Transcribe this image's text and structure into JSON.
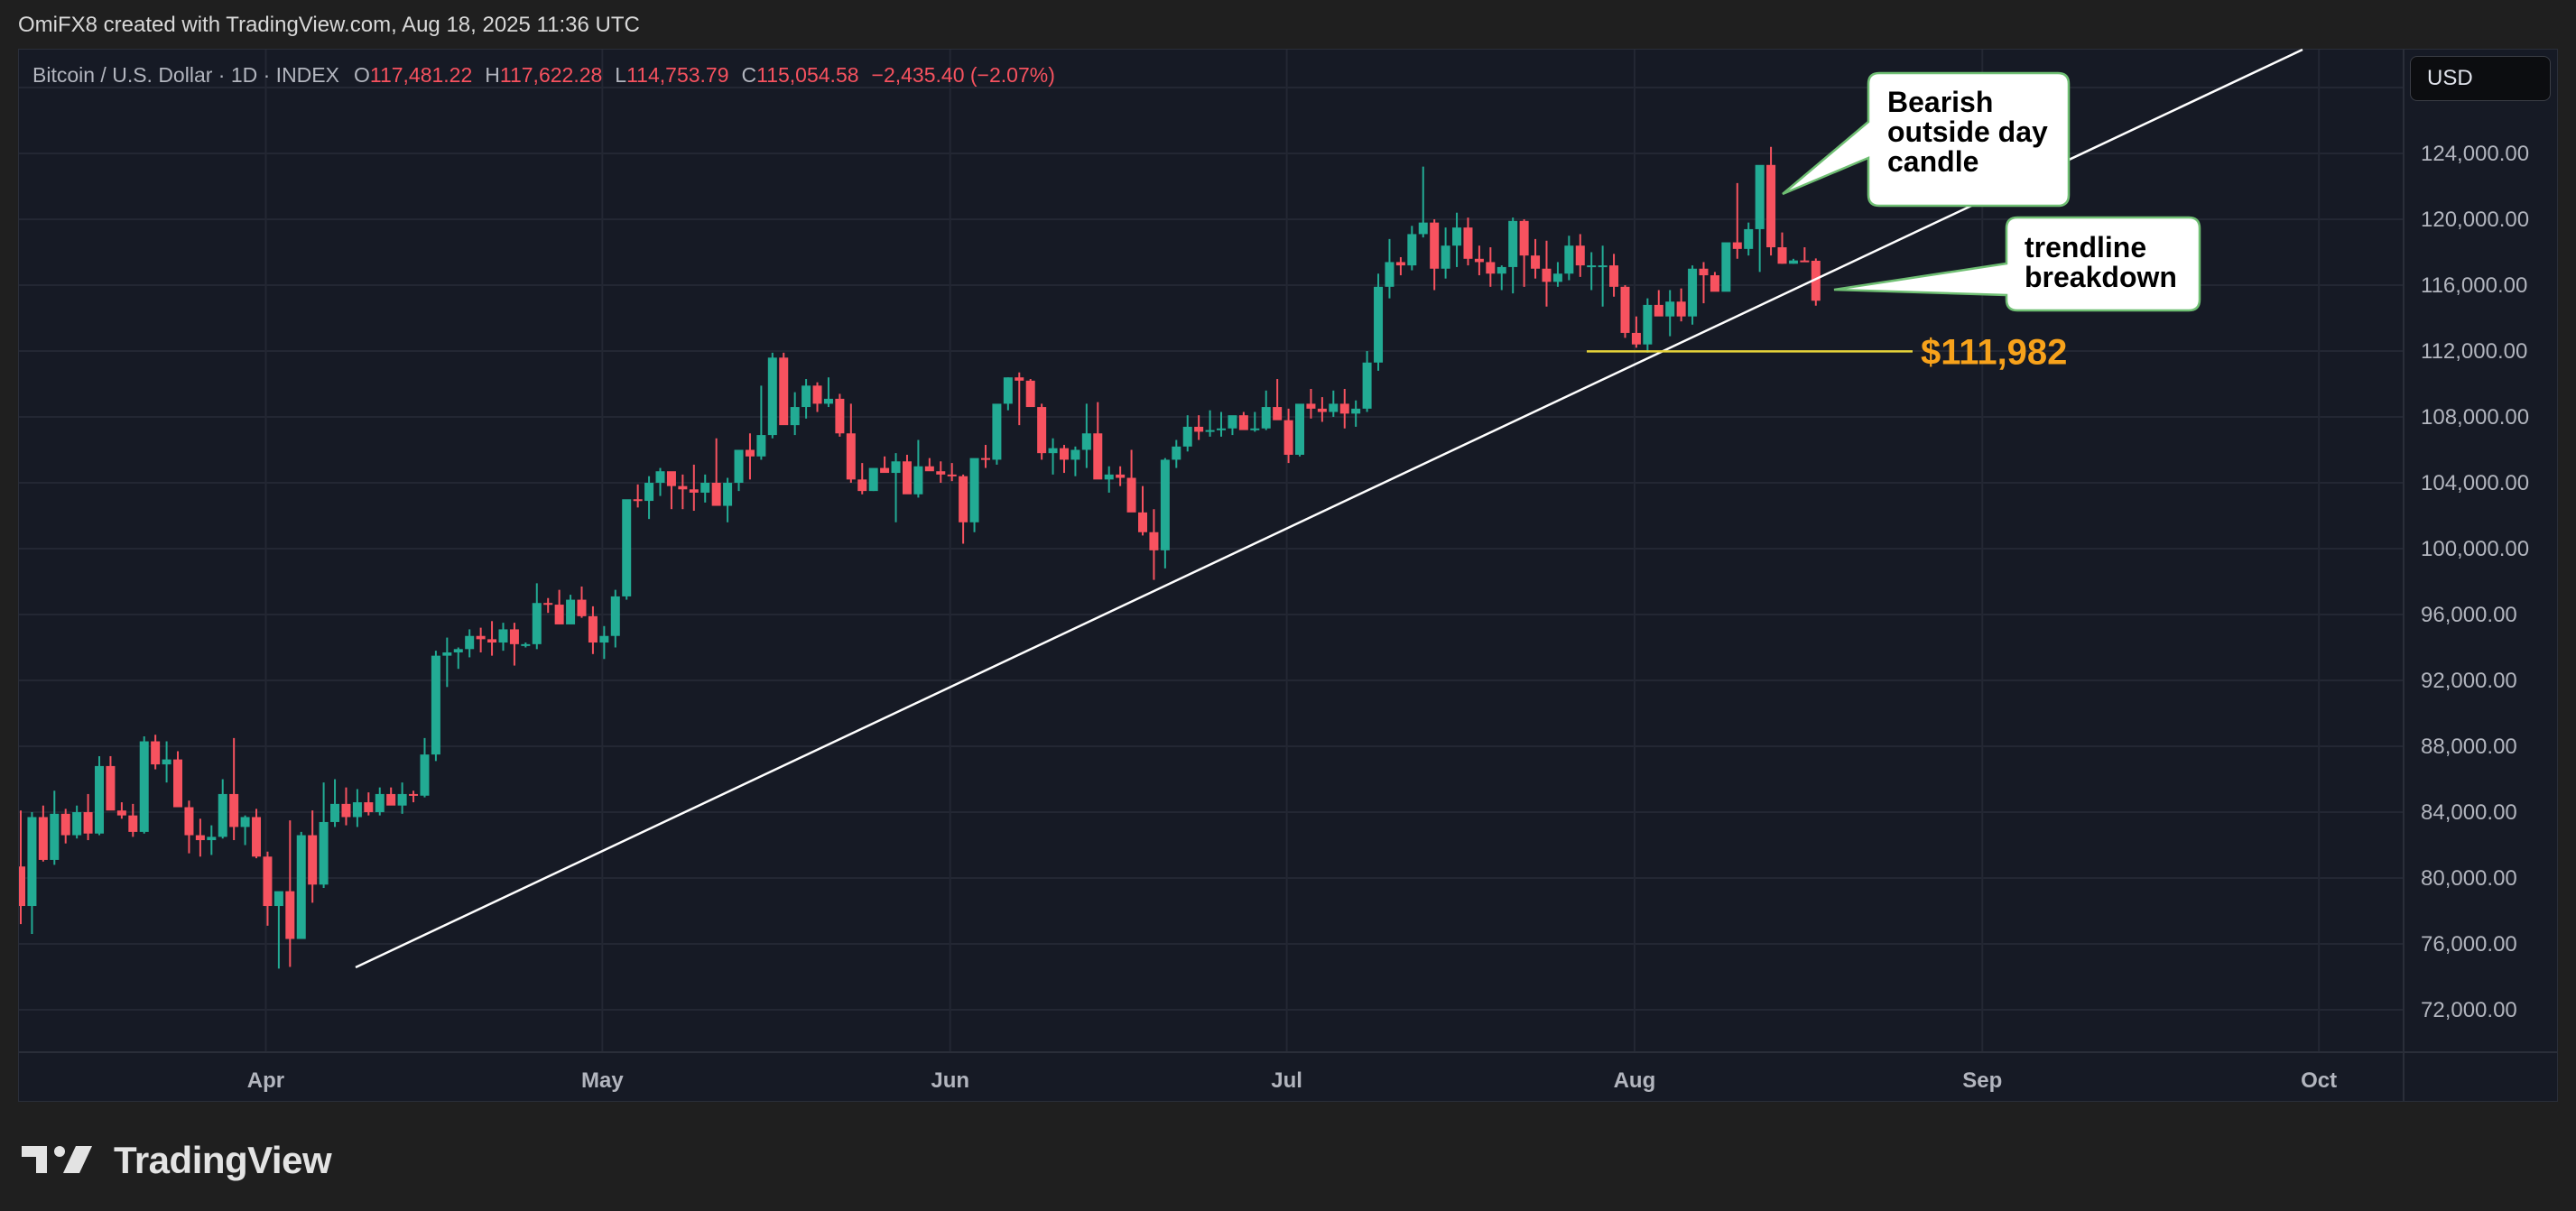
{
  "credit": "OmiFX8 created with TradingView.com, Aug 18, 2025 11:36 UTC",
  "legend": {
    "symbol": "Bitcoin / U.S. Dollar · 1D · INDEX",
    "o_label": "O",
    "o": "117,481.22",
    "h_label": "H",
    "h": "117,622.28",
    "l_label": "L",
    "l": "114,753.79",
    "c_label": "C",
    "c": "115,054.58",
    "change": "−2,435.40 (−2.07%)"
  },
  "currency_button": "USD",
  "annotations": {
    "bearish_callout": [
      "Bearish",
      "outside day",
      "candle"
    ],
    "trendline_callout": [
      "trendline",
      "breakdown"
    ],
    "support_label": "$111,982",
    "support_level": 111982
  },
  "footer": {
    "logo_text": "TradingView"
  },
  "colors": {
    "up": "#22ab94",
    "down": "#f7525f",
    "background": "#161a25",
    "grid": "#232733",
    "trendline": "#ffffff",
    "support_line": "#e6d33a",
    "support_label": "#f7a21b",
    "callout_border": "#6fbf73"
  },
  "chart_data": {
    "type": "candlestick",
    "title": "Bitcoin / U.S. Dollar · 1D · INDEX",
    "xlabel": "",
    "ylabel": "USD",
    "ylim": [
      69000,
      129500
    ],
    "y_ticks": [
      124000,
      120000,
      116000,
      112000,
      108000,
      104000,
      100000,
      96000,
      92000,
      88000,
      84000,
      80000,
      76000,
      72000
    ],
    "y_tick_labels": [
      "124,000.00",
      "120,000.00",
      "116,000.00",
      "112,000.00",
      "108,000.00",
      "104,000.00",
      "100,000.00",
      "96,000.00",
      "92,000.00",
      "88,000.00",
      "84,000.00",
      "80,000.00",
      "76,000.00",
      "72,000.00"
    ],
    "x_ticks": [
      {
        "label": "Apr",
        "day_index": 22
      },
      {
        "label": "May",
        "day_index": 52
      },
      {
        "label": "Jun",
        "day_index": 83
      },
      {
        "label": "Jul",
        "day_index": 113
      },
      {
        "label": "Aug",
        "day_index": 144
      },
      {
        "label": "Sep",
        "day_index": 175
      },
      {
        "label": "Oct",
        "day_index": 205
      }
    ],
    "start_date": "2025-03-10",
    "ohlc": [
      [
        80700,
        84100,
        77200,
        78300
      ],
      [
        78300,
        84000,
        76600,
        83700
      ],
      [
        83700,
        84400,
        81000,
        81100
      ],
      [
        81100,
        85300,
        80800,
        83900
      ],
      [
        83900,
        84200,
        82100,
        82600
      ],
      [
        82600,
        84400,
        82400,
        84000
      ],
      [
        84000,
        85100,
        82300,
        82700
      ],
      [
        82700,
        87400,
        82600,
        86800
      ],
      [
        86800,
        87400,
        85000,
        84100
      ],
      [
        84100,
        84600,
        83600,
        83800
      ],
      [
        83800,
        84500,
        82500,
        82800
      ],
      [
        82800,
        88600,
        82700,
        88300
      ],
      [
        88300,
        88700,
        86600,
        86900
      ],
      [
        86900,
        88300,
        85800,
        87200
      ],
      [
        87200,
        87700,
        85500,
        84300
      ],
      [
        84300,
        84700,
        81500,
        82600
      ],
      [
        82600,
        83600,
        81300,
        82300
      ],
      [
        82300,
        83200,
        81400,
        82500
      ],
      [
        82500,
        86000,
        82400,
        85100
      ],
      [
        85100,
        88500,
        82300,
        83100
      ],
      [
        83100,
        83800,
        82000,
        83700
      ],
      [
        83700,
        84200,
        81200,
        81300
      ],
      [
        81300,
        81600,
        77100,
        78300
      ],
      [
        78300,
        79000,
        74500,
        79200
      ],
      [
        79200,
        83500,
        74600,
        76300
      ],
      [
        76300,
        82800,
        76300,
        82600
      ],
      [
        82600,
        84100,
        78500,
        79600
      ],
      [
        79600,
        85800,
        79400,
        83400
      ],
      [
        83400,
        86000,
        83100,
        84500
      ],
      [
        84500,
        85500,
        83200,
        83700
      ],
      [
        83700,
        85400,
        83100,
        84600
      ],
      [
        84600,
        85200,
        83800,
        84000
      ],
      [
        84000,
        85500,
        83800,
        85100
      ],
      [
        85100,
        85500,
        84700,
        84400
      ],
      [
        84400,
        85800,
        83900,
        85100
      ],
      [
        85100,
        85300,
        84600,
        85000
      ],
      [
        85000,
        88500,
        84900,
        87500
      ],
      [
        87500,
        93800,
        87100,
        93500
      ],
      [
        93500,
        94600,
        91600,
        93700
      ],
      [
        93700,
        94000,
        92700,
        93900
      ],
      [
        93900,
        95100,
        93400,
        94700
      ],
      [
        94700,
        95200,
        93700,
        94500
      ],
      [
        94500,
        95600,
        93500,
        94300
      ],
      [
        94300,
        95500,
        93800,
        95100
      ],
      [
        95100,
        95500,
        92900,
        94200
      ],
      [
        94200,
        94300,
        94000,
        94200
      ],
      [
        94200,
        97900,
        93900,
        96700
      ],
      [
        96700,
        97000,
        96100,
        96600
      ],
      [
        96600,
        97500,
        95700,
        95400
      ],
      [
        95400,
        97200,
        95900,
        96900
      ],
      [
        96900,
        97700,
        95800,
        95900
      ],
      [
        95900,
        96500,
        93600,
        94300
      ],
      [
        94300,
        95300,
        93300,
        94700
      ],
      [
        94700,
        97500,
        94000,
        97100
      ],
      [
        97100,
        99900,
        96900,
        103000
      ],
      [
        103000,
        103900,
        102500,
        102900
      ],
      [
        102900,
        104400,
        101800,
        104000
      ],
      [
        104000,
        104900,
        103200,
        104700
      ],
      [
        104700,
        104600,
        102400,
        103800
      ],
      [
        103800,
        104500,
        102400,
        103600
      ],
      [
        103600,
        105100,
        102300,
        103400
      ],
      [
        103400,
        104500,
        102800,
        104000
      ],
      [
        104000,
        106700,
        103800,
        102600
      ],
      [
        102600,
        104300,
        101600,
        104000
      ],
      [
        104000,
        105700,
        103500,
        106000
      ],
      [
        106000,
        107000,
        104200,
        105600
      ],
      [
        105600,
        109900,
        105400,
        106900
      ],
      [
        106900,
        111900,
        106700,
        111600
      ],
      [
        111600,
        111900,
        107800,
        107500
      ],
      [
        107500,
        109500,
        106900,
        108600
      ],
      [
        108600,
        110300,
        107900,
        109900
      ],
      [
        109900,
        110100,
        108300,
        108800
      ],
      [
        108800,
        110400,
        108600,
        109100
      ],
      [
        109100,
        109400,
        106800,
        107000
      ],
      [
        107000,
        108800,
        104000,
        104200
      ],
      [
        104200,
        105200,
        103300,
        103500
      ],
      [
        103500,
        104800,
        103500,
        104900
      ],
      [
        104900,
        105600,
        104700,
        104600
      ],
      [
        104600,
        105800,
        101600,
        105300
      ],
      [
        105300,
        105700,
        103600,
        103300
      ],
      [
        103300,
        106600,
        103100,
        105000
      ],
      [
        105000,
        105500,
        104900,
        104700
      ],
      [
        104700,
        105300,
        104000,
        104500
      ],
      [
        104500,
        105200,
        104100,
        104400
      ],
      [
        104400,
        104500,
        100300,
        101600
      ],
      [
        101600,
        105000,
        101000,
        105500
      ],
      [
        105500,
        106300,
        104900,
        105400
      ],
      [
        105400,
        108600,
        105100,
        108800
      ],
      [
        108800,
        110400,
        108400,
        110400
      ],
      [
        110400,
        110700,
        107500,
        110200
      ],
      [
        110200,
        110300,
        108700,
        108600
      ],
      [
        108600,
        108800,
        105400,
        105800
      ],
      [
        105800,
        106700,
        104500,
        106100
      ],
      [
        106100,
        106300,
        104600,
        105400
      ],
      [
        105400,
        106200,
        104400,
        106000
      ],
      [
        106000,
        108800,
        104900,
        107000
      ],
      [
        107000,
        108900,
        104600,
        104200
      ],
      [
        104200,
        105000,
        103400,
        104500
      ],
      [
        104500,
        105000,
        103800,
        104300
      ],
      [
        104300,
        106000,
        102900,
        102200
      ],
      [
        102200,
        103800,
        100800,
        101000
      ],
      [
        101000,
        102400,
        98100,
        99900
      ],
      [
        99900,
        105500,
        98800,
        105400
      ],
      [
        105400,
        106600,
        104900,
        106200
      ],
      [
        106200,
        108100,
        105900,
        107400
      ],
      [
        107400,
        108100,
        106600,
        107100
      ],
      [
        107100,
        108400,
        106800,
        107200
      ],
      [
        107200,
        108300,
        106800,
        107300
      ],
      [
        107300,
        108000,
        106900,
        108100
      ],
      [
        108100,
        108300,
        107300,
        107200
      ],
      [
        107200,
        108300,
        107100,
        107300
      ],
      [
        107300,
        109600,
        107200,
        108600
      ],
      [
        108600,
        110300,
        108000,
        107800
      ],
      [
        107800,
        108500,
        105200,
        105700
      ],
      [
        105700,
        108500,
        105600,
        108800
      ],
      [
        108800,
        109700,
        107900,
        108500
      ],
      [
        108500,
        109200,
        107700,
        108300
      ],
      [
        108300,
        109600,
        108000,
        108800
      ],
      [
        108800,
        109700,
        107300,
        108200
      ],
      [
        108200,
        109000,
        107400,
        108500
      ],
      [
        108500,
        112000,
        108300,
        111300
      ],
      [
        111300,
        116700,
        110800,
        115900
      ],
      [
        115900,
        118800,
        115200,
        117400
      ],
      [
        117400,
        117700,
        116600,
        117200
      ],
      [
        117200,
        119600,
        116900,
        119100
      ],
      [
        119100,
        123200,
        118900,
        119800
      ],
      [
        119800,
        120000,
        115700,
        117000
      ],
      [
        117000,
        119500,
        116400,
        118400
      ],
      [
        118400,
        120400,
        117100,
        119500
      ],
      [
        119500,
        120100,
        117200,
        117600
      ],
      [
        117600,
        118400,
        116600,
        117400
      ],
      [
        117400,
        118300,
        115900,
        116700
      ],
      [
        116700,
        117200,
        115700,
        117100
      ],
      [
        117100,
        120100,
        115500,
        119900
      ],
      [
        119900,
        120000,
        115900,
        117800
      ],
      [
        117800,
        118800,
        116400,
        117000
      ],
      [
        117000,
        118700,
        114700,
        116200
      ],
      [
        116200,
        117400,
        115900,
        116700
      ],
      [
        116700,
        119000,
        116300,
        118400
      ],
      [
        118400,
        119100,
        116500,
        117200
      ],
      [
        117200,
        118000,
        115700,
        117200
      ],
      [
        117200,
        118400,
        114700,
        117200
      ],
      [
        117200,
        117900,
        115300,
        115900
      ],
      [
        115900,
        116000,
        112800,
        113100
      ],
      [
        113100,
        114100,
        112200,
        112400
      ],
      [
        112400,
        115200,
        111900,
        114800
      ],
      [
        114800,
        115700,
        114200,
        114100
      ],
      [
        114100,
        115700,
        112900,
        115000
      ],
      [
        115000,
        115800,
        113800,
        114100
      ],
      [
        114100,
        117200,
        113600,
        117000
      ],
      [
        117000,
        117400,
        114900,
        116600
      ],
      [
        116600,
        116800,
        115700,
        115600
      ],
      [
        115600,
        118400,
        115700,
        118600
      ],
      [
        118600,
        122200,
        117600,
        118200
      ],
      [
        118200,
        119800,
        117800,
        119400
      ],
      [
        119400,
        121600,
        116800,
        123300
      ],
      [
        123300,
        124400,
        117800,
        118300
      ],
      [
        118300,
        119200,
        117300,
        117300
      ],
      [
        117300,
        117600,
        117300,
        117500
      ],
      [
        117500,
        118300,
        117400,
        117400
      ],
      [
        117481,
        117622,
        114754,
        115055
      ]
    ],
    "annotations": [
      {
        "type": "trendline",
        "from": {
          "date": "2025-04-09",
          "price": 74500
        },
        "to": {
          "date": "2025-09-30",
          "price": 128400
        }
      },
      {
        "type": "horizontal_segment",
        "price": 111982,
        "label": "$111,982",
        "from": "2025-07-28",
        "to": "2025-08-26"
      },
      {
        "type": "callout",
        "text": "Bearish outside day candle",
        "points_to": "2025-08-14"
      },
      {
        "type": "callout",
        "text": "trendline breakdown",
        "points_to": "2025-08-18"
      }
    ],
    "grid": true,
    "legend_position": "top-left"
  }
}
